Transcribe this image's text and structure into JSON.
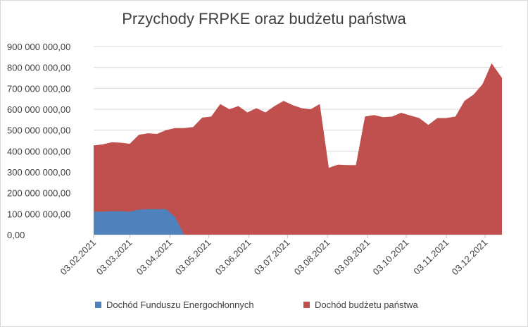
{
  "chart_data": {
    "type": "area",
    "title": "Przychody FRPKE oraz budżetu państwa",
    "xlabel": "",
    "ylabel": "",
    "ylim": [
      0,
      900000000
    ],
    "yticks": [
      0,
      100000000,
      200000000,
      300000000,
      400000000,
      500000000,
      600000000,
      700000000,
      800000000,
      900000000
    ],
    "ytick_labels": [
      "0,00",
      "100 000 000,00",
      "200 000 000,00",
      "300 000 000,00",
      "400 000 000,00",
      "500 000 000,00",
      "600 000 000,00",
      "700 000 000,00",
      "800 000 000,00",
      "900 000 000,00"
    ],
    "xlim": [
      "2021-02-03",
      "2021-12-16"
    ],
    "xticks": [
      "2021-02-03",
      "2021-03-03",
      "2021-04-03",
      "2021-05-03",
      "2021-06-03",
      "2021-07-03",
      "2021-08-03",
      "2021-09-03",
      "2021-10-03",
      "2021-11-03",
      "2021-12-03"
    ],
    "xtick_labels": [
      "03.02.2021",
      "03.03.2021",
      "03.04.2021",
      "03.05.2021",
      "03.06.2021",
      "03.07.2021",
      "03.08.2021",
      "03.09.2021",
      "03.10.2021",
      "03.11.2021",
      "03.12.2021"
    ],
    "grid": true,
    "legend_position": "bottom",
    "stacked": false,
    "series": [
      {
        "name": "Dochód budżetu państwa",
        "color": "#c0504d",
        "x": [
          "2021-02-03",
          "2021-02-10",
          "2021-02-17",
          "2021-02-24",
          "2021-03-03",
          "2021-03-10",
          "2021-03-17",
          "2021-03-24",
          "2021-03-31",
          "2021-04-07",
          "2021-04-14",
          "2021-04-21",
          "2021-04-28",
          "2021-05-05",
          "2021-05-12",
          "2021-05-19",
          "2021-05-26",
          "2021-06-02",
          "2021-06-09",
          "2021-06-16",
          "2021-06-23",
          "2021-06-30",
          "2021-07-07",
          "2021-07-14",
          "2021-07-21",
          "2021-07-28",
          "2021-08-04",
          "2021-08-11",
          "2021-08-18",
          "2021-08-25",
          "2021-09-01",
          "2021-09-08",
          "2021-09-15",
          "2021-09-22",
          "2021-09-29",
          "2021-10-06",
          "2021-10-13",
          "2021-10-20",
          "2021-10-27",
          "2021-11-03",
          "2021-11-10",
          "2021-11-17",
          "2021-11-24",
          "2021-12-01",
          "2021-12-08",
          "2021-12-16"
        ],
        "values": [
          427000000,
          432000000,
          442000000,
          440000000,
          435000000,
          478000000,
          485000000,
          482000000,
          500000000,
          510000000,
          510000000,
          515000000,
          560000000,
          565000000,
          625000000,
          600000000,
          615000000,
          585000000,
          605000000,
          585000000,
          615000000,
          640000000,
          620000000,
          605000000,
          600000000,
          625000000,
          320000000,
          335000000,
          333000000,
          333000000,
          565000000,
          572000000,
          562000000,
          565000000,
          583000000,
          570000000,
          558000000,
          525000000,
          558000000,
          558000000,
          565000000,
          640000000,
          670000000,
          720000000,
          820000000,
          750000000
        ]
      },
      {
        "name": "Dochód Funduszu Energochłonnych",
        "color": "#4f81bd",
        "x": [
          "2021-02-03",
          "2021-02-10",
          "2021-02-17",
          "2021-02-24",
          "2021-03-03",
          "2021-03-10",
          "2021-03-17",
          "2021-03-24",
          "2021-03-31",
          "2021-04-07",
          "2021-04-14"
        ],
        "values": [
          110000000,
          110000000,
          112000000,
          112000000,
          110000000,
          120000000,
          122000000,
          122000000,
          122000000,
          85000000,
          0
        ]
      }
    ],
    "legend": [
      {
        "label": "Dochód Funduszu Energochłonnych",
        "color": "#4f81bd"
      },
      {
        "label": "Dochód budżetu państwa",
        "color": "#c0504d"
      }
    ]
  }
}
